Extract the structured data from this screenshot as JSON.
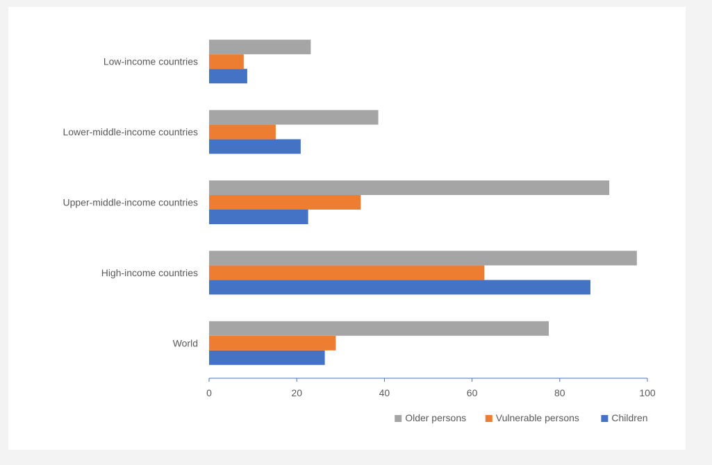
{
  "chart_data": {
    "type": "bar",
    "orientation": "horizontal",
    "title": "",
    "xlabel": "",
    "ylabel": "",
    "categories": [
      "World",
      "High-income countries",
      "Upper-middle-income countries",
      "Lower-middle-income countries",
      "Low-income countries"
    ],
    "series": [
      {
        "name": "Children",
        "color": "#4472c4",
        "values": [
          26.4,
          87,
          22.6,
          20.9,
          8.7
        ]
      },
      {
        "name": "Vulnerable persons",
        "color": "#ed7d31",
        "values": [
          28.9,
          62.8,
          34.6,
          15.2,
          7.9
        ]
      },
      {
        "name": "Older persons",
        "color": "#a5a5a5",
        "values": [
          77.5,
          97.6,
          91.3,
          38.6,
          23.2
        ]
      }
    ],
    "xlim": [
      0,
      100
    ],
    "xticks": [
      0,
      20,
      40,
      60,
      80,
      100
    ],
    "legend_position": "bottom-right",
    "legend_order": [
      "Older persons",
      "Vulnerable persons",
      "Children"
    ],
    "grid": false
  }
}
